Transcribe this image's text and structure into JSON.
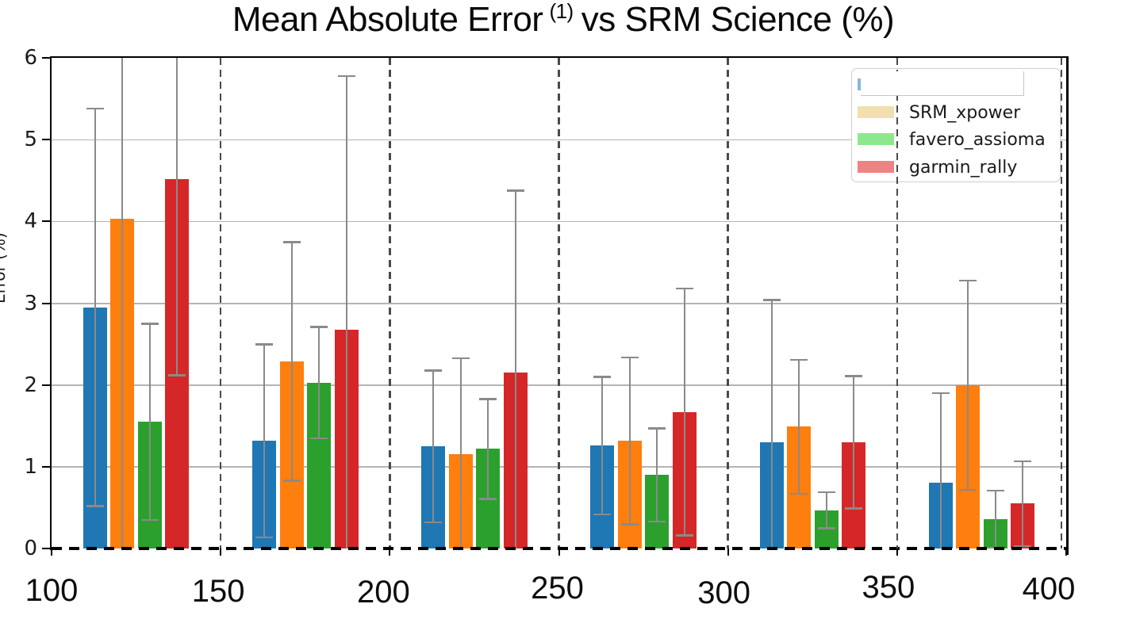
{
  "title": {
    "part1": "Mean Absolute Error",
    "superscript": "(1)",
    "part2": "vs SRM Science (%)"
  },
  "chart_data": {
    "type": "bar",
    "title": "Mean Absolute Error (1) vs SRM Science (%)",
    "xlabel": "",
    "ylabel": "Error (%)",
    "ylim": [
      0,
      6
    ],
    "xlim": [
      100,
      400
    ],
    "x_ticks": [
      "100",
      "150",
      "200",
      "250",
      "300",
      "350",
      "400"
    ],
    "y_ticks": [
      "0",
      "1",
      "2",
      "3",
      "4",
      "5",
      "6"
    ],
    "group_centers": [
      125,
      175,
      225,
      275,
      325,
      375
    ],
    "error_bar_style": "mean plus/minus 1 std, gray, clipped at axis limits",
    "grid": {
      "horizontal": "solid light gray at 1-5",
      "vertical": "dashed dark gray at 150,200,250,300,350,400"
    },
    "legend_position": "upper right",
    "legend_note": "first legend entry label is covered by a white redaction box, only a sliver of its blue swatch shows",
    "series": [
      {
        "name": "",
        "redacted": true,
        "color": "#1f77b4",
        "legend_swatch": "#85b8da",
        "means": [
          2.95,
          1.32,
          1.25,
          1.26,
          1.3,
          0.8
        ],
        "stds": [
          2.43,
          1.18,
          0.93,
          0.84,
          1.74,
          1.1
        ]
      },
      {
        "name": "SRM_xpower",
        "redacted": false,
        "color": "#ff7f0e",
        "legend_swatch": "#f2dfae",
        "means": [
          4.03,
          2.29,
          1.15,
          1.32,
          1.49,
          2.0
        ],
        "stds": [
          4.1,
          1.46,
          1.18,
          1.02,
          0.82,
          1.28
        ]
      },
      {
        "name": "favero_assioma",
        "redacted": false,
        "color": "#2ca02c",
        "legend_swatch": "#8de88d",
        "means": [
          1.55,
          2.03,
          1.22,
          0.9,
          0.47,
          0.36
        ],
        "stds": [
          1.2,
          0.68,
          0.61,
          0.57,
          0.22,
          0.35
        ]
      },
      {
        "name": "garmin_rally",
        "redacted": false,
        "color": "#d62728",
        "legend_swatch": "#ee8383",
        "means": [
          4.52,
          2.68,
          2.15,
          1.67,
          1.3,
          0.55
        ],
        "stds": [
          2.4,
          3.1,
          2.23,
          1.51,
          0.81,
          0.52
        ]
      }
    ]
  },
  "colors": {
    "error_bar": "#8a8a8a",
    "h_grid": "#b4b4b4",
    "v_grid_dash": "#4a4a4a",
    "axis": "#000000",
    "legend_border": "#cfcfcf"
  }
}
